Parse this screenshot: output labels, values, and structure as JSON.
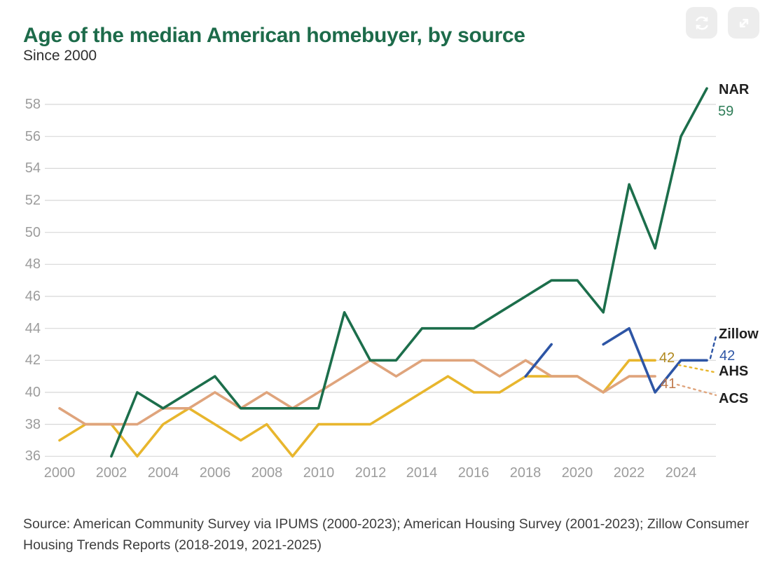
{
  "header": {
    "title": "Age of the median American homebuyer, by source",
    "subtitle": "Since 2000",
    "controls": [
      {
        "icon": "refresh-icon"
      },
      {
        "icon": "expand-icon"
      }
    ]
  },
  "colors": {
    "title": "#1d6b4a",
    "axis_text": "#9c9c9c",
    "grid": "#d8d8d8",
    "label_text": "#1f1f1f"
  },
  "annotations": {
    "nar_label": "NAR",
    "nar_value": "59",
    "nar_value_color": "#2f7d58",
    "zillow_label": "Zillow",
    "zillow_value": "42",
    "zillow_value_color": "#2d55a5",
    "ahs_label": "AHS",
    "ahs_value": "42",
    "ahs_value_color": "#b1891f",
    "acs_label": "ACS",
    "acs_value": "41",
    "acs_value_color": "#c07a4c"
  },
  "chart_data": {
    "type": "line",
    "title": "Age of the median American homebuyer, by source",
    "subtitle": "Since 2000",
    "xlabel": "",
    "ylabel": "",
    "x_ticks": [
      2000,
      2002,
      2004,
      2006,
      2008,
      2010,
      2012,
      2014,
      2016,
      2018,
      2020,
      2022,
      2024
    ],
    "xlim": [
      2000,
      2025
    ],
    "y_ticks": [
      36,
      38,
      40,
      42,
      44,
      46,
      48,
      50,
      52,
      54,
      56,
      58
    ],
    "ylim": [
      36,
      59
    ],
    "grid": "horizontal",
    "legend_position": "line-end-labels",
    "series": [
      {
        "name": "AHS",
        "color": "#e8b62d",
        "end_value": 42,
        "segments": [
          [
            [
              2000,
              37
            ],
            [
              2001,
              38
            ],
            [
              2002,
              38
            ],
            [
              2003,
              36
            ],
            [
              2004,
              38
            ],
            [
              2005,
              39
            ],
            [
              2006,
              38
            ],
            [
              2007,
              37
            ],
            [
              2008,
              38
            ],
            [
              2009,
              36
            ],
            [
              2010,
              38
            ],
            [
              2011,
              38
            ],
            [
              2012,
              38
            ],
            [
              2013,
              39
            ],
            [
              2014,
              40
            ],
            [
              2015,
              41
            ],
            [
              2016,
              40
            ],
            [
              2017,
              40
            ],
            [
              2018,
              41
            ],
            [
              2019,
              41
            ],
            [
              2020,
              41
            ],
            [
              2021,
              40
            ],
            [
              2022,
              42
            ],
            [
              2023,
              42
            ]
          ]
        ]
      },
      {
        "name": "ACS",
        "color": "#dfa47c",
        "end_value": 41,
        "segments": [
          [
            [
              2000,
              39
            ],
            [
              2001,
              38
            ],
            [
              2002,
              38
            ],
            [
              2003,
              38
            ],
            [
              2004,
              39
            ],
            [
              2005,
              39
            ],
            [
              2006,
              40
            ],
            [
              2007,
              39
            ],
            [
              2008,
              40
            ],
            [
              2009,
              39
            ],
            [
              2010,
              40
            ],
            [
              2011,
              41
            ],
            [
              2012,
              42
            ],
            [
              2013,
              41
            ],
            [
              2014,
              42
            ],
            [
              2015,
              42
            ],
            [
              2016,
              42
            ],
            [
              2017,
              41
            ],
            [
              2018,
              42
            ],
            [
              2019,
              41
            ],
            [
              2020,
              41
            ],
            [
              2021,
              40
            ],
            [
              2022,
              41
            ],
            [
              2023,
              41
            ]
          ]
        ]
      },
      {
        "name": "NAR",
        "color": "#1c6e4b",
        "end_value": 59,
        "segments": [
          [
            [
              2002,
              36
            ],
            [
              2003,
              40
            ],
            [
              2004,
              39
            ],
            [
              2005,
              40
            ],
            [
              2006,
              41
            ],
            [
              2007,
              39
            ],
            [
              2008,
              39
            ],
            [
              2009,
              39
            ],
            [
              2010,
              39
            ],
            [
              2011,
              45
            ],
            [
              2012,
              42
            ],
            [
              2013,
              42
            ],
            [
              2014,
              44
            ],
            [
              2015,
              44
            ],
            [
              2016,
              44
            ],
            [
              2017,
              45
            ],
            [
              2018,
              46
            ],
            [
              2019,
              47
            ],
            [
              2020,
              47
            ],
            [
              2021,
              45
            ],
            [
              2022,
              53
            ],
            [
              2023,
              49
            ],
            [
              2024,
              56
            ],
            [
              2025,
              59
            ]
          ]
        ]
      },
      {
        "name": "Zillow",
        "color": "#2d55a5",
        "end_value": 42,
        "segments": [
          [
            [
              2018,
              41
            ],
            [
              2019,
              43
            ]
          ],
          [
            [
              2021,
              43
            ],
            [
              2022,
              44
            ],
            [
              2023,
              40
            ],
            [
              2024,
              42
            ],
            [
              2025,
              42
            ]
          ]
        ]
      }
    ]
  },
  "footer": {
    "source": "Source: American Community Survey via IPUMS (2000-2023); American Housing Survey (2001-2023); Zillow Consumer Housing Trends Reports (2018-2019, 2021-2025)"
  }
}
